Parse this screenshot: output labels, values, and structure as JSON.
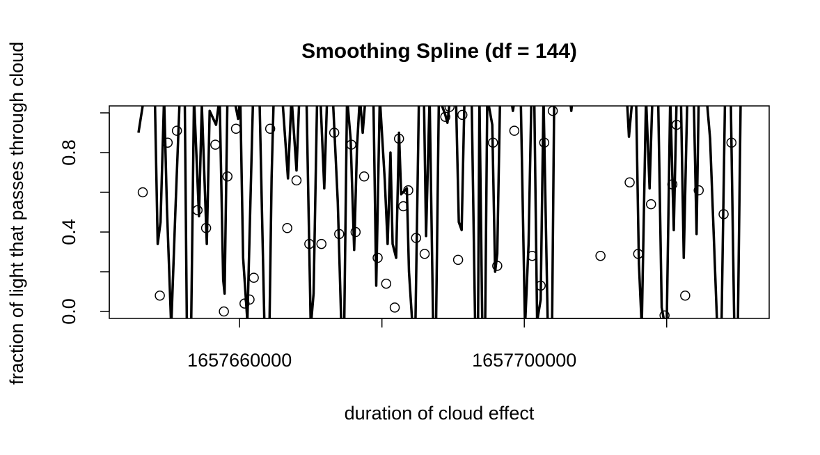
{
  "chart_data": {
    "type": "scatter",
    "title": "Smoothing Spline (df = 144)",
    "x_label": "duration of cloud effect",
    "y_label": "fraction of light that passes through cloud",
    "xlim": [
      1657641700,
      1657734400
    ],
    "ylim": [
      -0.035,
      1.035
    ],
    "xticks": [
      1657660000,
      {
        "value": 1657680000,
        "label": null
      },
      1657700000,
      {
        "value": 1657720000,
        "label": null
      }
    ],
    "yticks": [
      {
        "value": 0,
        "label": "0.0"
      },
      {
        "value": 0.2,
        "label": null
      },
      0.4,
      {
        "value": 0.6,
        "label": null
      },
      0.8,
      {
        "value": 1,
        "label": null
      }
    ],
    "series": [
      {
        "type": "scatter",
        "color": "#000000",
        "x": [
          1657646400,
          1657648800,
          1657649900,
          1657651200,
          1657654100,
          1657655300,
          1657656600,
          1657657800,
          1657658300,
          1657659500,
          1657660700,
          1657661400,
          1657662000,
          1657664300,
          1657666700,
          1657668000,
          1657669800,
          1657671500,
          1657673300,
          1657674000,
          1657675700,
          1657676300,
          1657677500,
          1657679400,
          1657680600,
          1657681800,
          1657682400,
          1657683000,
          1657683700,
          1657684800,
          1657686000,
          1657688900,
          1657689500,
          1657690700,
          1657691300,
          1657695600,
          1657696200,
          1657698600,
          1657701100,
          1657702300,
          1657702800,
          1657704000,
          1657710700,
          1657714800,
          1657716000,
          1657717800,
          1657719700,
          1657720800,
          1657721400,
          1657722600,
          1657724500,
          1657728000,
          1657729100
        ],
        "values": [
          0.6,
          0.08,
          0.85,
          0.91,
          0.51,
          0.42,
          0.84,
          0.0,
          0.68,
          0.92,
          0.04,
          0.06,
          0.17,
          0.92,
          0.42,
          0.66,
          0.34,
          0.34,
          0.9,
          0.39,
          0.84,
          0.4,
          0.68,
          0.27,
          0.14,
          0.02,
          0.87,
          0.53,
          0.61,
          0.37,
          0.29,
          0.98,
          1.03,
          0.26,
          0.99,
          0.85,
          0.23,
          0.91,
          0.28,
          0.13,
          0.85,
          1.01,
          0.28,
          0.65,
          0.29,
          0.54,
          -0.02,
          0.64,
          0.94,
          0.08,
          0.61,
          0.49,
          0.85
        ]
      },
      {
        "type": "line",
        "color": "#000000",
        "x": [
          1657645800,
          1657646500,
          1657648100,
          1657648500,
          1657648900,
          1657649400,
          1657649800,
          1657650400,
          1657651000,
          1657651600,
          1657652300,
          1657652600,
          1657653200,
          1657653600,
          1657654300,
          1657654700,
          1657655400,
          1657655800,
          1657656700,
          1657657200,
          1657657700,
          1657657900,
          1657658300,
          1657659200,
          1657659800,
          1657660100,
          1657660500,
          1657661100,
          1657661900,
          1657662800,
          1657663500,
          1657664200,
          1657664500,
          1657664800,
          1657666000,
          1657666800,
          1657667300,
          1657668000,
          1657668400,
          1657669400,
          1657670000,
          1657670400,
          1657670900,
          1657671400,
          1657671900,
          1657672300,
          1657673100,
          1657673800,
          1657674300,
          1657674700,
          1657675100,
          1657675600,
          1657676100,
          1657676500,
          1657676900,
          1657677300,
          1657677700,
          1657678800,
          1657679200,
          1657679700,
          1657680400,
          1657680800,
          1657681200,
          1657681500,
          1657682000,
          1657682400,
          1657682700,
          1657683500,
          1657683800,
          1657684300,
          1657684700,
          1657685200,
          1657685900,
          1657686200,
          1657686700,
          1657687200,
          1657687600,
          1657688000,
          1657688900,
          1657689200,
          1657689600,
          1657690400,
          1657690800,
          1657691200,
          1657691600,
          1657692600,
          1657693100,
          1657693500,
          1657693700,
          1657694100,
          1657694500,
          1657694800,
          1657695500,
          1657695900,
          1657696200,
          1657696600,
          1657698100,
          1657698400,
          1657698700,
          1657699500,
          1657700100,
          1657700600,
          1657701000,
          1657701400,
          1657701800,
          1657702300,
          1657702700,
          1657703300,
          1657703900,
          1657704200,
          1657706400,
          1657706600,
          1657706800,
          1657714400,
          1657714700,
          1657715200,
          1657715700,
          1657716100,
          1657716500,
          1657717100,
          1657717600,
          1657718000,
          1657718800,
          1657719300,
          1657719800,
          1657720000,
          1657720500,
          1657721000,
          1657721400,
          1657722000,
          1657722400,
          1657722900,
          1657723800,
          1657724200,
          1657724500,
          1657725600,
          1657726100,
          1657727100,
          1657727700,
          1657728200,
          1657729000,
          1657729500,
          1657730000,
          1657730400
        ],
        "values": [
          0.9,
          1.06,
          1.08,
          0.34,
          0.45,
          1.08,
          0.52,
          -0.08,
          0.52,
          1.08,
          1.08,
          -0.08,
          -0.08,
          1.08,
          0.48,
          1.04,
          0.34,
          1.01,
          0.94,
          1.08,
          0.16,
          0.09,
          1.08,
          1.08,
          0.97,
          1.08,
          0.27,
          -0.05,
          1.08,
          1.08,
          -0.08,
          -0.08,
          0.67,
          1.08,
          1.08,
          0.67,
          1.08,
          0.71,
          1.08,
          1.08,
          -0.08,
          0.09,
          1.08,
          1.04,
          0.62,
          1.08,
          1.08,
          0.55,
          -0.08,
          -0.08,
          1.08,
          0.87,
          0.31,
          0.83,
          1.08,
          0.9,
          1.08,
          1.08,
          0.13,
          1.08,
          0.66,
          0.34,
          0.8,
          0.34,
          0.27,
          0.9,
          0.59,
          0.62,
          0.2,
          -0.08,
          -0.08,
          1.08,
          1.08,
          0.38,
          1.08,
          -0.08,
          -0.08,
          1.08,
          0.99,
          0.95,
          1.08,
          1.08,
          0.45,
          0.41,
          1.08,
          1.08,
          -0.08,
          -0.08,
          1.08,
          -0.08,
          -0.08,
          1.08,
          0.94,
          0.2,
          0.29,
          1.08,
          1.08,
          1.01,
          1.08,
          1.08,
          -0.08,
          0.34,
          1.08,
          1.08,
          -0.05,
          0.06,
          1.08,
          -0.08,
          -0.08,
          1.08,
          1.08,
          1.01,
          1.08,
          1.08,
          0.88,
          1.08,
          1.08,
          0.24,
          -0.08,
          1.08,
          0.62,
          1.08,
          1.08,
          0.02,
          -0.08,
          -0.08,
          1.08,
          0.41,
          1.08,
          1.08,
          0.27,
          1.08,
          1.08,
          0.39,
          1.08,
          1.08,
          0.87,
          -0.08,
          -0.08,
          1.08,
          1.08,
          -0.08,
          -0.08,
          1.08
        ]
      }
    ]
  }
}
